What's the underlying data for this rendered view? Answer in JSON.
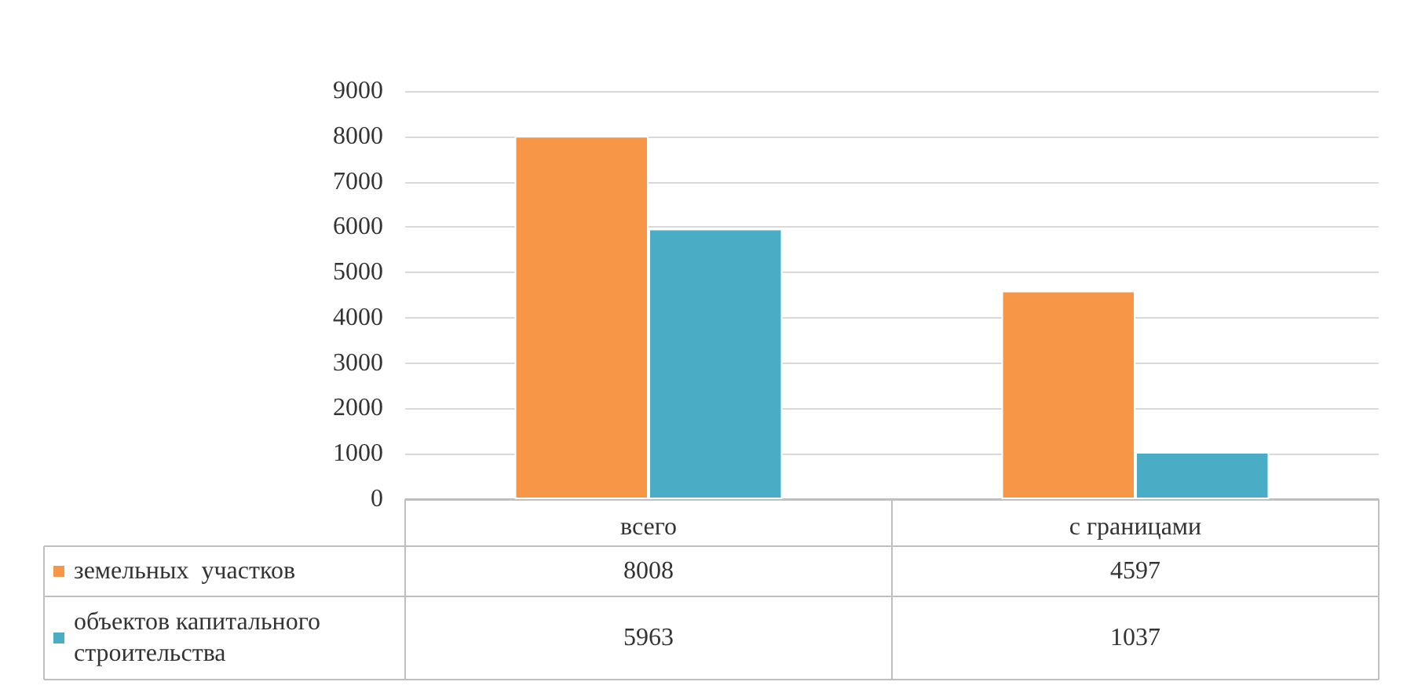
{
  "chart_data": {
    "type": "bar",
    "categories": [
      "всего",
      "с границами"
    ],
    "series": [
      {
        "name": "земельных  участков",
        "color": "#f79646",
        "values": [
          8008,
          4597
        ]
      },
      {
        "name": "объектов капитального строительства",
        "color": "#4bacc6",
        "values": [
          5963,
          1037
        ]
      }
    ],
    "ylim": [
      0,
      9000
    ],
    "yticks": [
      0,
      1000,
      2000,
      3000,
      4000,
      5000,
      6000,
      7000,
      8000,
      9000
    ],
    "grid": "y",
    "legend": "bottom",
    "data_labels": true
  }
}
